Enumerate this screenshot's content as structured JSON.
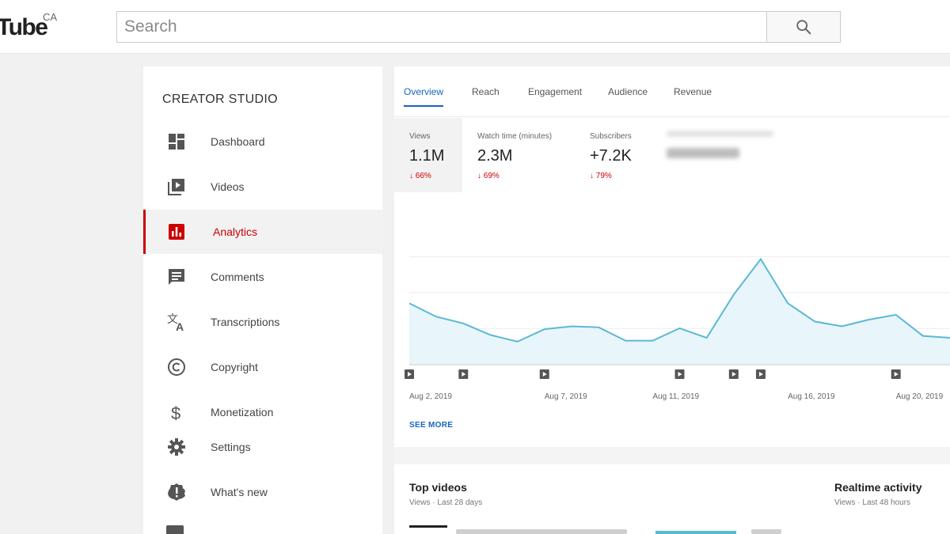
{
  "header": {
    "logo_text": "Tube",
    "region": "CA",
    "search_placeholder": "Search"
  },
  "sidebar": {
    "title": "CREATOR STUDIO",
    "items": [
      {
        "label": "Dashboard",
        "icon": "dashboard-icon"
      },
      {
        "label": "Videos",
        "icon": "video-library-icon"
      },
      {
        "label": "Analytics",
        "icon": "analytics-icon",
        "active": true
      },
      {
        "label": "Comments",
        "icon": "comment-icon"
      },
      {
        "label": "Transcriptions",
        "icon": "translate-icon"
      },
      {
        "label": "Copyright",
        "icon": "copyright-icon"
      },
      {
        "label": "Monetization",
        "icon": "dollar-icon"
      },
      {
        "label": "Settings",
        "icon": "gear-icon"
      },
      {
        "label": "What's new",
        "icon": "alert-badge-icon"
      }
    ]
  },
  "tabs": [
    "Overview",
    "Reach",
    "Engagement",
    "Audience",
    "Revenue"
  ],
  "active_tab": "Overview",
  "metrics": [
    {
      "label": "Views",
      "value": "1.1M",
      "change": "66%",
      "direction": "down"
    },
    {
      "label": "Watch time (minutes)",
      "value": "2.3M",
      "change": "69%",
      "direction": "down"
    },
    {
      "label": "Subscribers",
      "value": "+7.2K",
      "change": "79%",
      "direction": "down"
    }
  ],
  "chart_data": {
    "type": "area",
    "x_ticks": [
      "Aug 2, 2019",
      "Aug 7, 2019",
      "Aug 11, 2019",
      "Aug 16, 2019",
      "Aug 20, 2019"
    ],
    "values": [
      64,
      50,
      43,
      31,
      24,
      37,
      40,
      39,
      25,
      25,
      38,
      28,
      73,
      110,
      64,
      45,
      40,
      47,
      52,
      30,
      28
    ],
    "ylim": [
      0,
      150
    ],
    "video_markers": [
      0,
      2,
      5,
      10,
      12,
      13,
      18
    ],
    "grid": true,
    "line_color": "#5bb8d4",
    "fill_color": "#e8f5fa"
  },
  "see_more": "SEE MORE",
  "cards": {
    "top_videos": {
      "title": "Top videos",
      "subtitle": "Views · Last 28 days"
    },
    "realtime": {
      "title": "Realtime activity",
      "subtitle": "Views · Last 48 hours"
    }
  },
  "colors": {
    "accent_red": "#cc0000",
    "accent_blue": "#1565c0"
  }
}
